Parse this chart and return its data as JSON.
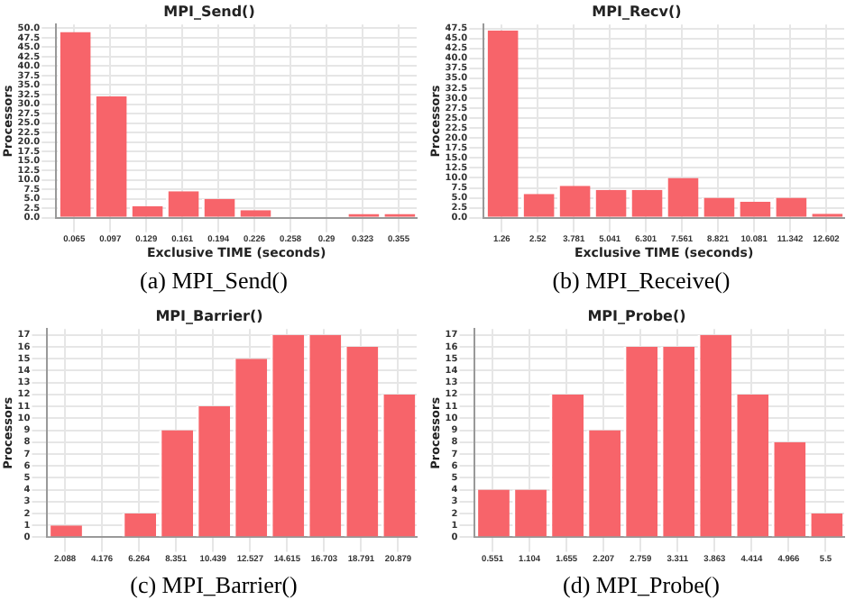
{
  "chart_data": [
    {
      "type": "bar",
      "title": "MPI_Send()",
      "xlabel": "Exclusive TIME (seconds)",
      "ylabel": "Processors",
      "categories": [
        "0.065",
        "0.097",
        "0.129",
        "0.161",
        "0.194",
        "0.226",
        "0.258",
        "0.29",
        "0.323",
        "0.355"
      ],
      "values": [
        49,
        32,
        3,
        7,
        5,
        2,
        0,
        0,
        1,
        1
      ],
      "color": "#f7646a",
      "ylim": [
        0,
        51
      ],
      "yticks": [
        {
          "value": 0,
          "label": "0.0"
        },
        {
          "value": 2.5,
          "label": "2.5"
        },
        {
          "value": 5,
          "label": "5.0"
        },
        {
          "value": 7.5,
          "label": "7.5"
        },
        {
          "value": 10,
          "label": "10.0"
        },
        {
          "value": 12.5,
          "label": "12.5"
        },
        {
          "value": 15,
          "label": "15.0"
        },
        {
          "value": 17.5,
          "label": "17.5"
        },
        {
          "value": 20,
          "label": "20.0"
        },
        {
          "value": 22.5,
          "label": "22.5"
        },
        {
          "value": 25,
          "label": "25.0"
        },
        {
          "value": 27.5,
          "label": "27.5"
        },
        {
          "value": 30,
          "label": "30.0"
        },
        {
          "value": 32.5,
          "label": "32.5"
        },
        {
          "value": 35,
          "label": "35.0"
        },
        {
          "value": 37.5,
          "label": "37.5"
        },
        {
          "value": 40,
          "label": "40.0"
        },
        {
          "value": 42.5,
          "label": "42.5"
        },
        {
          "value": 45,
          "label": "45.0"
        },
        {
          "value": 47.5,
          "label": "47.5"
        },
        {
          "value": 50,
          "label": "50.0"
        }
      ],
      "grid": true,
      "annotations": [
        "(a) MPI_Send()"
      ]
    },
    {
      "type": "bar",
      "title": "MPI_Recv()",
      "xlabel": "Exclusive TIME (seconds)",
      "ylabel": "Processors",
      "categories": [
        "1.26",
        "2.52",
        "3.781",
        "5.041",
        "6.301",
        "7.561",
        "8.821",
        "10.081",
        "11.342",
        "12.602"
      ],
      "values": [
        47,
        6,
        8,
        7,
        7,
        10,
        5,
        4,
        5,
        1
      ],
      "color": "#f7646a",
      "ylim": [
        0,
        48.5
      ],
      "yticks": [
        {
          "value": 0,
          "label": "0.0"
        },
        {
          "value": 2.5,
          "label": "2.5"
        },
        {
          "value": 5,
          "label": "5.0"
        },
        {
          "value": 7.5,
          "label": "7.5"
        },
        {
          "value": 10,
          "label": "10.0"
        },
        {
          "value": 12.5,
          "label": "12.5"
        },
        {
          "value": 15,
          "label": "15.0"
        },
        {
          "value": 17.5,
          "label": "17.5"
        },
        {
          "value": 20,
          "label": "20.0"
        },
        {
          "value": 22.5,
          "label": "22.5"
        },
        {
          "value": 25,
          "label": "25.0"
        },
        {
          "value": 27.5,
          "label": "27.5"
        },
        {
          "value": 30,
          "label": "30.0"
        },
        {
          "value": 32.5,
          "label": "32.5"
        },
        {
          "value": 35,
          "label": "35.0"
        },
        {
          "value": 37.5,
          "label": "37.5"
        },
        {
          "value": 40,
          "label": "40.0"
        },
        {
          "value": 42.5,
          "label": "42.5"
        },
        {
          "value": 45,
          "label": "45.0"
        },
        {
          "value": 47.5,
          "label": "47.5"
        }
      ],
      "grid": true,
      "annotations": [
        "(b) MPI_Receive()"
      ]
    },
    {
      "type": "bar",
      "title": "MPI_Barrier()",
      "ylabel": "Processors",
      "categories": [
        "2.088",
        "4.176",
        "6.264",
        "8.351",
        "10.439",
        "12.527",
        "14.615",
        "16.703",
        "18.791",
        "20.879"
      ],
      "values": [
        1,
        0,
        2,
        9,
        11,
        15,
        17,
        17,
        16,
        12
      ],
      "color": "#f7646a",
      "ylim": [
        0,
        17.5
      ],
      "yticks": [
        0,
        1,
        2,
        3,
        4,
        5,
        6,
        7,
        8,
        9,
        10,
        11,
        12,
        13,
        14,
        15,
        16,
        17
      ],
      "grid": true,
      "annotations": [
        "(c) MPI_Barrier()"
      ]
    },
    {
      "type": "bar",
      "title": "MPI_Probe()",
      "ylabel": "Processors",
      "categories": [
        "0.551",
        "1.104",
        "1.655",
        "2.207",
        "2.759",
        "3.311",
        "3.863",
        "4.414",
        "4.966",
        "5.5"
      ],
      "values": [
        4,
        4,
        12,
        9,
        16,
        16,
        17,
        12,
        8,
        2
      ],
      "color": "#f7646a",
      "ylim": [
        0,
        17.5
      ],
      "yticks": [
        0,
        1,
        2,
        3,
        4,
        5,
        6,
        7,
        8,
        9,
        10,
        11,
        12,
        13,
        14,
        15,
        16,
        17
      ],
      "grid": true,
      "annotations": [
        "(d) MPI_Probe()"
      ]
    }
  ]
}
